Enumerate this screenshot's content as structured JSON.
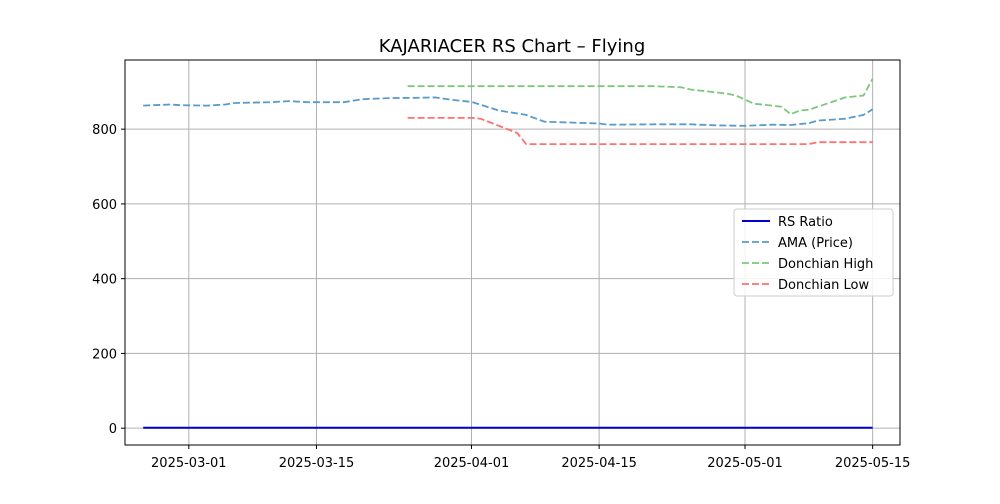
{
  "chart_data": {
    "type": "line",
    "title": "KAJARIACER RS Chart – Flying",
    "xlabel": "",
    "ylabel": "",
    "xlim": [
      "2025-02-22",
      "2025-05-18"
    ],
    "ylim": [
      -45,
      985
    ],
    "x_ticks": [
      "2025-03-01",
      "2025-03-15",
      "2025-04-01",
      "2025-04-15",
      "2025-05-01",
      "2025-05-15"
    ],
    "y_ticks": [
      0,
      200,
      400,
      600,
      800
    ],
    "grid": true,
    "legend_position": "center-right",
    "series": [
      {
        "name": "RS Ratio",
        "color": "#0000cc",
        "dash": "solid",
        "points": [
          [
            "2025-02-24",
            1
          ],
          [
            "2025-05-15",
            1
          ]
        ]
      },
      {
        "name": "AMA (Price)",
        "color": "#5b9bc8",
        "dash": "dashed",
        "points": [
          [
            "2025-02-24",
            863
          ],
          [
            "2025-02-27",
            866
          ],
          [
            "2025-02-28",
            864
          ],
          [
            "2025-03-03",
            863
          ],
          [
            "2025-03-05",
            866
          ],
          [
            "2025-03-06",
            870
          ],
          [
            "2025-03-10",
            872
          ],
          [
            "2025-03-12",
            875
          ],
          [
            "2025-03-14",
            872
          ],
          [
            "2025-03-18",
            872
          ],
          [
            "2025-03-20",
            880
          ],
          [
            "2025-03-23",
            883
          ],
          [
            "2025-03-26",
            884
          ],
          [
            "2025-03-28",
            885
          ],
          [
            "2025-03-30",
            878
          ],
          [
            "2025-04-01",
            873
          ],
          [
            "2025-04-04",
            850
          ],
          [
            "2025-04-07",
            838
          ],
          [
            "2025-04-09",
            820
          ],
          [
            "2025-04-15",
            815
          ],
          [
            "2025-04-16",
            812
          ],
          [
            "2025-04-21",
            813
          ],
          [
            "2025-04-25",
            813
          ],
          [
            "2025-04-28",
            810
          ],
          [
            "2025-05-01",
            809
          ],
          [
            "2025-05-04",
            812
          ],
          [
            "2025-05-06",
            811
          ],
          [
            "2025-05-08",
            816
          ],
          [
            "2025-05-09",
            823
          ],
          [
            "2025-05-12",
            828
          ],
          [
            "2025-05-14",
            838
          ],
          [
            "2025-05-15",
            853
          ]
        ]
      },
      {
        "name": "Donchian High",
        "color": "#7dc77d",
        "dash": "dashed",
        "points": [
          [
            "2025-03-25",
            915
          ],
          [
            "2025-04-21",
            915
          ],
          [
            "2025-04-24",
            912
          ],
          [
            "2025-04-25",
            906
          ],
          [
            "2025-04-29",
            895
          ],
          [
            "2025-04-30",
            890
          ],
          [
            "2025-05-02",
            868
          ],
          [
            "2025-05-05",
            860
          ],
          [
            "2025-05-06",
            840
          ],
          [
            "2025-05-07",
            850
          ],
          [
            "2025-05-08",
            852
          ],
          [
            "2025-05-09",
            860
          ],
          [
            "2025-05-12",
            885
          ],
          [
            "2025-05-14",
            890
          ],
          [
            "2025-05-15",
            935
          ]
        ]
      },
      {
        "name": "Donchian Low",
        "color": "#ff7070",
        "dash": "dashed",
        "points": [
          [
            "2025-03-25",
            830
          ],
          [
            "2025-04-01",
            830
          ],
          [
            "2025-04-02",
            828
          ],
          [
            "2025-04-06",
            790
          ],
          [
            "2025-04-07",
            760
          ],
          [
            "2025-05-08",
            760
          ],
          [
            "2025-05-09",
            765
          ],
          [
            "2025-05-15",
            765
          ]
        ]
      }
    ]
  }
}
